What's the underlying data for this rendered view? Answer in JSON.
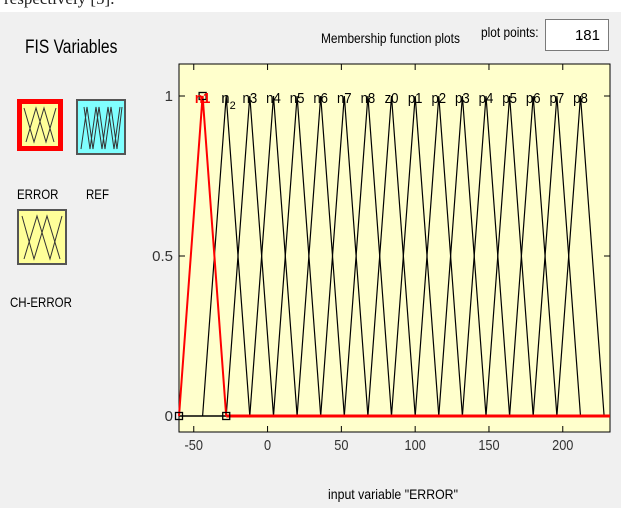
{
  "fragment_text": "respectively [5].",
  "fis_variables": {
    "title": "FIS Variables",
    "items": [
      {
        "label": "ERROR",
        "kind": "input",
        "selected": true,
        "color": "#ffff99"
      },
      {
        "label": "REF",
        "kind": "output",
        "selected": false,
        "color": "#80ffff"
      },
      {
        "label": "CH-ERROR",
        "kind": "input",
        "selected": false,
        "color": "#ffff99"
      }
    ]
  },
  "plot_header": {
    "title": "Membership function plots",
    "plot_points_label": "plot points:",
    "plot_points_value": "181"
  },
  "colors": {
    "plot_background": "#ffffcc",
    "selected_mf": "#ff0000",
    "mf_line": "#000000",
    "panel": "#f0f0f0"
  },
  "chart_data": {
    "type": "line",
    "xlabel": "input variable \"ERROR\"",
    "xlim": [
      -60,
      232
    ],
    "ylim": [
      -0.05,
      1.1
    ],
    "x_ticks": [
      -50,
      0,
      50,
      100,
      150,
      200
    ],
    "y_ticks": [
      0,
      0.5,
      1
    ],
    "selected": "n1",
    "series": [
      {
        "name": "n1",
        "points": [
          [
            -60,
            0
          ],
          [
            -44,
            1
          ],
          [
            -28,
            0
          ]
        ]
      },
      {
        "name": "n2",
        "points": [
          [
            -44,
            0
          ],
          [
            -28,
            1
          ],
          [
            -12,
            0
          ]
        ]
      },
      {
        "name": "n3",
        "points": [
          [
            -28,
            0
          ],
          [
            -12,
            1
          ],
          [
            4,
            0
          ]
        ]
      },
      {
        "name": "n4",
        "points": [
          [
            -12,
            0
          ],
          [
            4,
            1
          ],
          [
            20,
            0
          ]
        ]
      },
      {
        "name": "n5",
        "points": [
          [
            4,
            0
          ],
          [
            20,
            1
          ],
          [
            36,
            0
          ]
        ]
      },
      {
        "name": "n6",
        "points": [
          [
            20,
            0
          ],
          [
            36,
            1
          ],
          [
            52,
            0
          ]
        ]
      },
      {
        "name": "n7",
        "points": [
          [
            36,
            0
          ],
          [
            52,
            1
          ],
          [
            68,
            0
          ]
        ]
      },
      {
        "name": "n8",
        "points": [
          [
            52,
            0
          ],
          [
            68,
            1
          ],
          [
            84,
            0
          ]
        ]
      },
      {
        "name": "z0",
        "points": [
          [
            68,
            0
          ],
          [
            84,
            1
          ],
          [
            100,
            0
          ]
        ]
      },
      {
        "name": "p1",
        "points": [
          [
            84,
            0
          ],
          [
            100,
            1
          ],
          [
            116,
            0
          ]
        ]
      },
      {
        "name": "p2",
        "points": [
          [
            100,
            0
          ],
          [
            116,
            1
          ],
          [
            132,
            0
          ]
        ]
      },
      {
        "name": "p3",
        "points": [
          [
            116,
            0
          ],
          [
            132,
            1
          ],
          [
            148,
            0
          ]
        ]
      },
      {
        "name": "p4",
        "points": [
          [
            132,
            0
          ],
          [
            148,
            1
          ],
          [
            164,
            0
          ]
        ]
      },
      {
        "name": "p5",
        "points": [
          [
            148,
            0
          ],
          [
            164,
            1
          ],
          [
            180,
            0
          ]
        ]
      },
      {
        "name": "p6",
        "points": [
          [
            164,
            0
          ],
          [
            180,
            1
          ],
          [
            196,
            0
          ]
        ]
      },
      {
        "name": "p7",
        "points": [
          [
            180,
            0
          ],
          [
            196,
            1
          ],
          [
            212,
            0
          ]
        ]
      },
      {
        "name": "p8",
        "points": [
          [
            196,
            0
          ],
          [
            212,
            1
          ],
          [
            228,
            0
          ]
        ]
      }
    ]
  }
}
